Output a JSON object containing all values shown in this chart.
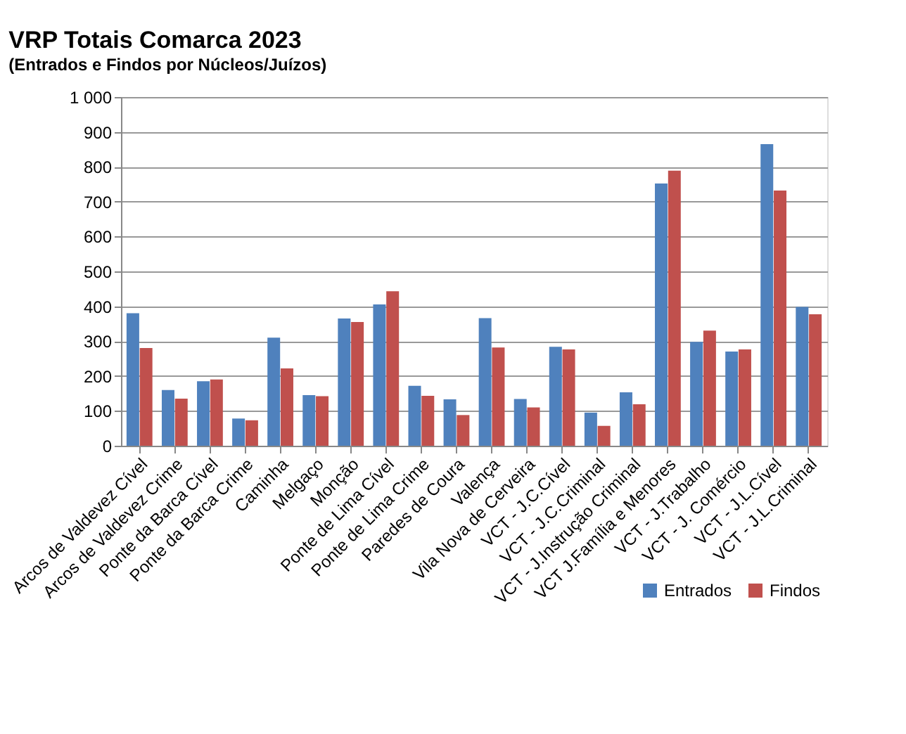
{
  "chart_data": {
    "type": "bar",
    "title": "VRP Totais Comarca 2023",
    "subtitle": "(Entrados e Findos por Núcleos/Juízos)",
    "categories": [
      "Arcos de Valdevez Cível",
      "Arcos de Valdevez Crime",
      "Ponte da Barca Cível",
      "Ponte da Barca Crime",
      "Caminha",
      "Melgaço",
      "Monção",
      "Ponte de Lima Cível",
      "Ponte de Lima Crime",
      "Paredes de Coura",
      "Valença",
      "Vila Nova de Cerveira",
      "VCT - J.C.Cível",
      "VCT - J.C.Criminal",
      "VCT - J.Instrução Criminal",
      "VCT J.Família e Menores",
      "VCT - J.Trabalho",
      "VCT - J. Comércio",
      "VCT - J.L.Cível",
      "VCT - J.L.Criminal"
    ],
    "series": [
      {
        "name": "Entrados",
        "color": "#4f81bd",
        "values": [
          380,
          160,
          185,
          78,
          310,
          145,
          365,
          405,
          172,
          133,
          366,
          134,
          284,
          95,
          153,
          752,
          298,
          270,
          865,
          398
        ]
      },
      {
        "name": "Findos",
        "color": "#c0504d",
        "values": [
          280,
          135,
          190,
          73,
          222,
          142,
          355,
          443,
          143,
          88,
          282,
          110,
          276,
          57,
          119,
          789,
          330,
          276,
          732,
          377
        ]
      }
    ],
    "ylim": [
      0,
      1000
    ],
    "yticks": [
      0,
      100,
      200,
      300,
      400,
      500,
      600,
      700,
      800,
      900,
      {
        "value": 1000,
        "label": "1 000"
      }
    ],
    "grid": "y",
    "legend": "bottom right"
  }
}
